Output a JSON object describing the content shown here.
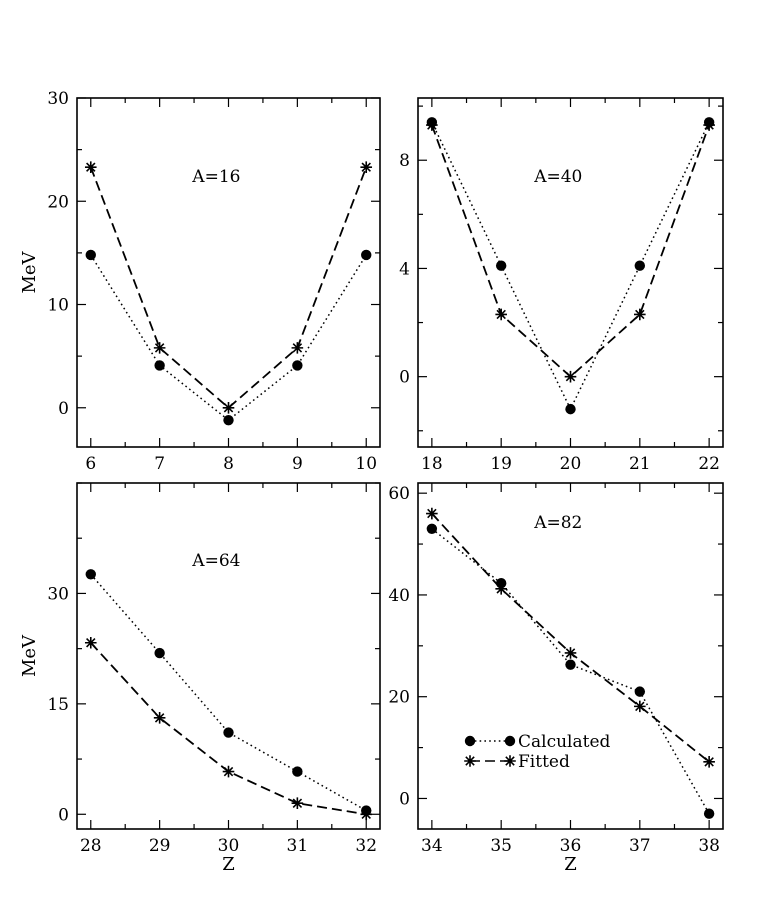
{
  "chart_data": [
    {
      "type": "line",
      "annotation": "A=16",
      "xlabel": "",
      "ylabel": "MeV",
      "xlim": [
        5.8,
        10.2
      ],
      "ylim": [
        -3.8,
        30
      ],
      "xticks": [
        6,
        7,
        8,
        9,
        10
      ],
      "yticks": [
        0,
        10,
        20,
        30
      ],
      "x": [
        6,
        7,
        8,
        9,
        10
      ],
      "series": [
        {
          "name": "Calculated",
          "style": "dotted",
          "marker": "circle",
          "values": [
            14.8,
            4.1,
            -1.2,
            4.1,
            14.8
          ]
        },
        {
          "name": "Fitted",
          "style": "dashed",
          "marker": "star",
          "values": [
            23.3,
            5.8,
            0.0,
            5.8,
            23.3
          ]
        }
      ]
    },
    {
      "type": "line",
      "annotation": "A=40",
      "xlabel": "",
      "ylabel": "",
      "xlim": [
        17.8,
        22.2
      ],
      "ylim": [
        -2.6,
        10.3
      ],
      "xticks": [
        18,
        19,
        20,
        21,
        22
      ],
      "yticks": [
        0,
        4,
        8
      ],
      "x": [
        18,
        19,
        20,
        21,
        22
      ],
      "series": [
        {
          "name": "Calculated",
          "style": "dotted",
          "marker": "circle",
          "values": [
            9.4,
            4.1,
            -1.2,
            4.1,
            9.4
          ]
        },
        {
          "name": "Fitted",
          "style": "dashed",
          "marker": "star",
          "values": [
            9.3,
            2.3,
            0.0,
            2.3,
            9.3
          ]
        }
      ]
    },
    {
      "type": "line",
      "annotation": "A=64",
      "xlabel": "Z",
      "ylabel": "MeV",
      "xlim": [
        27.8,
        32.2
      ],
      "ylim": [
        -2,
        45
      ],
      "xticks": [
        28,
        29,
        30,
        31,
        32
      ],
      "yticks": [
        0,
        15,
        30
      ],
      "x": [
        28,
        29,
        30,
        31,
        32
      ],
      "series": [
        {
          "name": "Calculated",
          "style": "dotted",
          "marker": "circle",
          "values": [
            32.6,
            21.9,
            11.1,
            5.8,
            0.5
          ]
        },
        {
          "name": "Fitted",
          "style": "dashed",
          "marker": "star",
          "values": [
            23.3,
            13.1,
            5.8,
            1.5,
            0.0
          ]
        }
      ]
    },
    {
      "type": "line",
      "annotation": "A=82",
      "xlabel": "Z",
      "ylabel": "",
      "xlim": [
        33.8,
        38.2
      ],
      "ylim": [
        -6,
        62
      ],
      "xticks": [
        34,
        35,
        36,
        37,
        38
      ],
      "yticks": [
        0,
        20,
        40,
        60
      ],
      "x": [
        34,
        35,
        36,
        37,
        38
      ],
      "series": [
        {
          "name": "Calculated",
          "style": "dotted",
          "marker": "circle",
          "values": [
            53.0,
            42.3,
            26.3,
            21.0,
            -3.0
          ]
        },
        {
          "name": "Fitted",
          "style": "dashed",
          "marker": "star",
          "values": [
            56.0,
            41.2,
            28.6,
            18.1,
            7.2
          ]
        }
      ],
      "legend": {
        "position": "lower-left",
        "entries": [
          "Calculated",
          "Fitted"
        ]
      }
    }
  ]
}
